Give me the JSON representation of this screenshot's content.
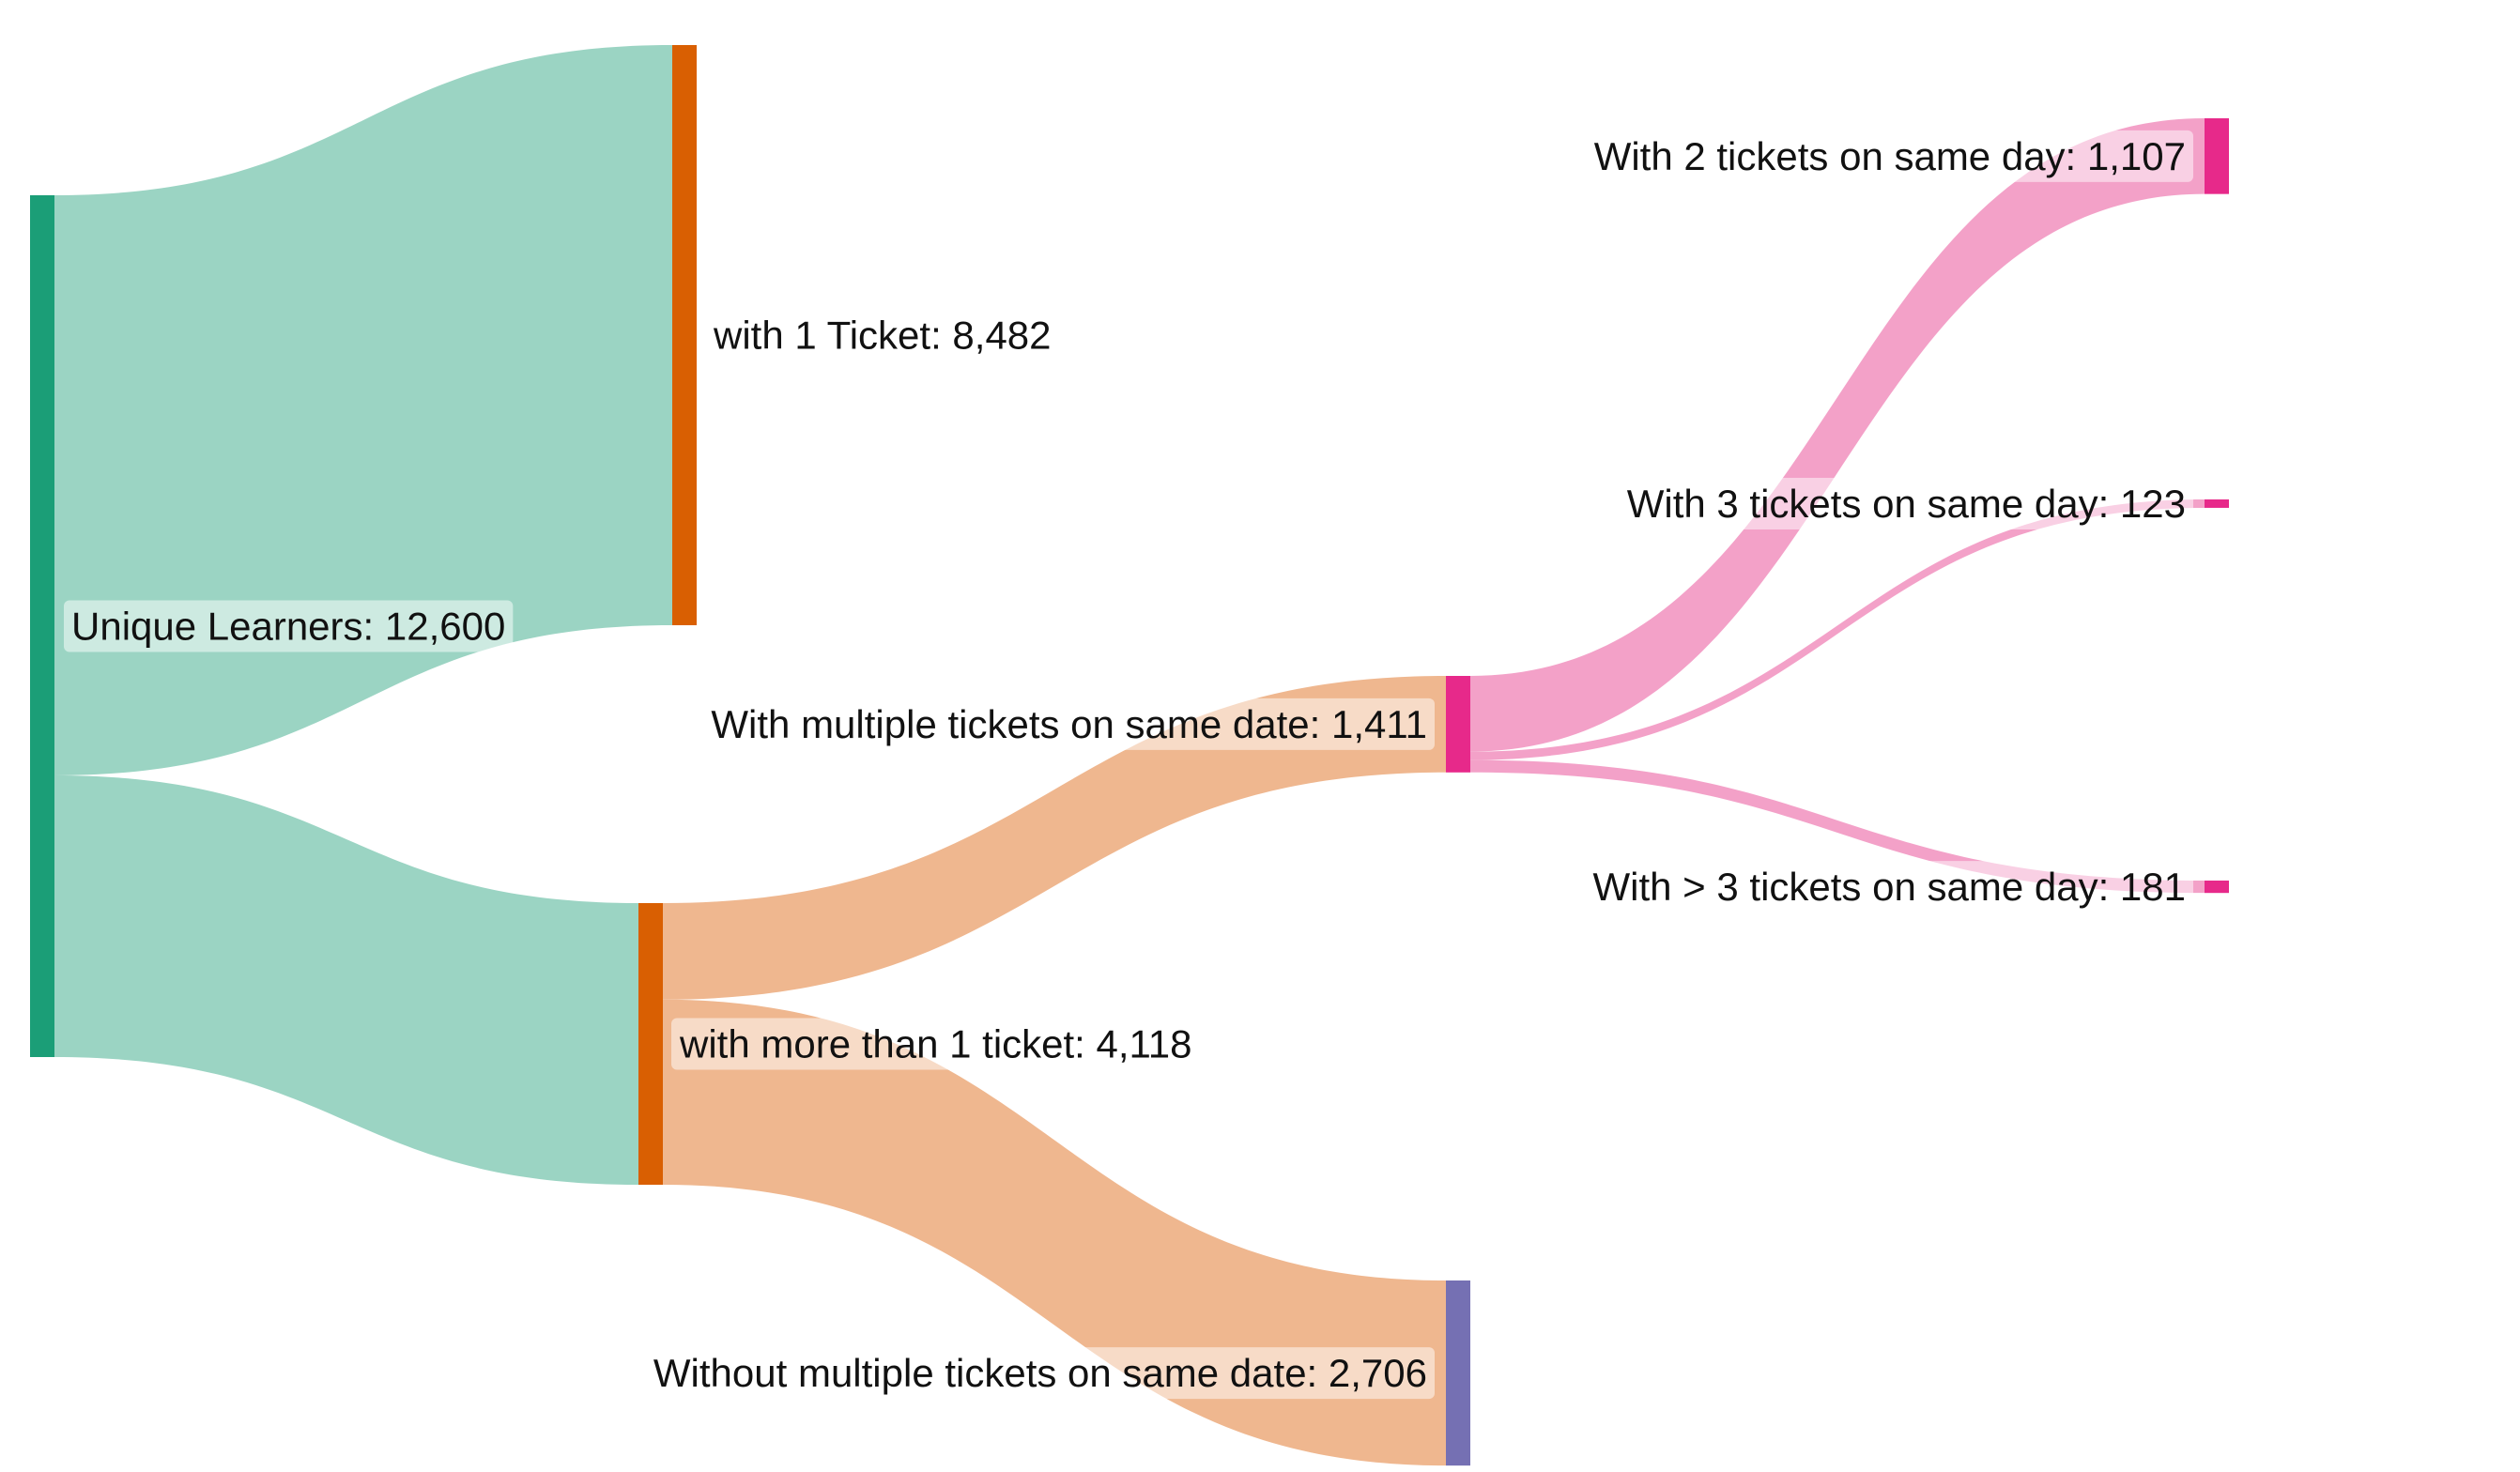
{
  "chart_data": {
    "type": "sankey",
    "nodes": [
      {
        "id": "unique",
        "label": "Unique Learners: 12,600",
        "value": 12600,
        "color": "#1b9e77"
      },
      {
        "id": "one",
        "label": "with 1 Ticket: 8,482",
        "value": 8482,
        "color": "#d95f02"
      },
      {
        "id": "more",
        "label": "with more than 1 ticket: 4,118",
        "value": 4118,
        "color": "#d95f02"
      },
      {
        "id": "multi",
        "label": "With multiple tickets on same date: 1,411",
        "value": 1411,
        "color": "#e7298a"
      },
      {
        "id": "without",
        "label": "Without multiple tickets on same date: 2,706",
        "value": 2706,
        "color": "#7570b3"
      },
      {
        "id": "two",
        "label": "With 2 tickets on same day: 1,107",
        "value": 1107,
        "color": "#e7298a"
      },
      {
        "id": "three",
        "label": "With 3 tickets on same day: 123",
        "value": 123,
        "color": "#e7298a"
      },
      {
        "id": "gt3",
        "label": "With > 3 tickets on same day: 181",
        "value": 181,
        "color": "#e7298a"
      }
    ],
    "links": [
      {
        "source": "unique",
        "target": "one",
        "value": 8482,
        "color": "#9bd4c3"
      },
      {
        "source": "unique",
        "target": "more",
        "value": 4118,
        "color": "#9bd4c3"
      },
      {
        "source": "more",
        "target": "multi",
        "value": 1411,
        "color": "#efb78f"
      },
      {
        "source": "more",
        "target": "without",
        "value": 2706,
        "color": "#efb78f"
      },
      {
        "source": "multi",
        "target": "two",
        "value": 1107,
        "color": "#f3a1c8"
      },
      {
        "source": "multi",
        "target": "three",
        "value": 123,
        "color": "#f3a1c8"
      },
      {
        "source": "multi",
        "target": "gt3",
        "value": 181,
        "color": "#f3a1c8"
      }
    ]
  }
}
